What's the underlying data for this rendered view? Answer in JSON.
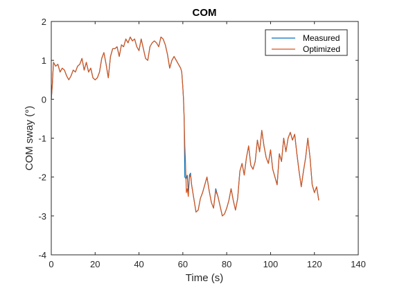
{
  "chart_data": {
    "type": "line",
    "title": "COM",
    "xlabel": "Time (s)",
    "ylabel": "COM sway (°)",
    "xlim": [
      0,
      140
    ],
    "ylim": [
      -4,
      2
    ],
    "xticks": [
      0,
      20,
      40,
      60,
      80,
      100,
      120,
      140
    ],
    "yticks": [
      -4,
      -3,
      -2,
      -1,
      0,
      1,
      2
    ],
    "xtick_labels": [
      "0",
      "20",
      "40",
      "60",
      "80",
      "100",
      "120",
      "140"
    ],
    "ytick_labels": [
      "-4",
      "-3",
      "-2",
      "-1",
      "0",
      "1",
      "2"
    ],
    "grid": false,
    "legend_position": "top-right",
    "series": [
      {
        "name": "Measured",
        "color": "#0072BD",
        "points": [
          [
            0,
            0.0
          ],
          [
            0.5,
            0.4
          ],
          [
            1,
            0.95
          ],
          [
            2,
            0.85
          ],
          [
            3,
            0.9
          ],
          [
            4,
            0.7
          ],
          [
            5,
            0.8
          ],
          [
            6,
            0.75
          ],
          [
            7,
            0.6
          ],
          [
            8,
            0.5
          ],
          [
            9,
            0.6
          ],
          [
            10,
            0.75
          ],
          [
            11,
            0.7
          ],
          [
            12,
            0.85
          ],
          [
            13,
            0.9
          ],
          [
            14,
            1.05
          ],
          [
            15,
            0.75
          ],
          [
            16,
            0.95
          ],
          [
            17,
            0.7
          ],
          [
            18,
            0.8
          ],
          [
            19,
            0.55
          ],
          [
            20,
            0.5
          ],
          [
            21,
            0.55
          ],
          [
            22,
            0.7
          ],
          [
            23,
            1.05
          ],
          [
            24,
            1.2
          ],
          [
            25,
            0.9
          ],
          [
            26,
            0.55
          ],
          [
            27,
            1.1
          ],
          [
            28,
            1.3
          ],
          [
            29,
            1.3
          ],
          [
            30,
            1.35
          ],
          [
            31,
            1.1
          ],
          [
            32,
            1.4
          ],
          [
            33,
            1.35
          ],
          [
            34,
            1.55
          ],
          [
            35,
            1.45
          ],
          [
            36,
            1.6
          ],
          [
            37,
            1.5
          ],
          [
            38,
            1.55
          ],
          [
            39,
            1.35
          ],
          [
            40,
            1.25
          ],
          [
            41,
            1.55
          ],
          [
            42,
            1.3
          ],
          [
            43,
            1.05
          ],
          [
            44,
            1.0
          ],
          [
            45,
            1.35
          ],
          [
            46,
            1.45
          ],
          [
            47,
            1.5
          ],
          [
            48,
            1.45
          ],
          [
            49,
            1.35
          ],
          [
            50,
            1.6
          ],
          [
            51,
            1.55
          ],
          [
            52,
            1.4
          ],
          [
            53,
            1.15
          ],
          [
            54,
            0.8
          ],
          [
            55,
            1.0
          ],
          [
            56,
            1.1
          ],
          [
            57,
            1.0
          ],
          [
            58,
            0.9
          ],
          [
            59,
            0.8
          ],
          [
            59.5,
            0.7
          ],
          [
            60,
            0.3
          ],
          [
            60.3,
            0.0
          ],
          [
            60.6,
            -0.5
          ],
          [
            60.9,
            -2.0
          ],
          [
            61.5,
            -2.05
          ],
          [
            62,
            -1.95
          ],
          [
            62.5,
            -2.4
          ],
          [
            63,
            -1.95
          ],
          [
            63.5,
            -1.9
          ],
          [
            64,
            -2.2
          ],
          [
            65,
            -2.55
          ],
          [
            66,
            -2.9
          ],
          [
            67,
            -2.85
          ],
          [
            68,
            -2.55
          ],
          [
            69,
            -2.4
          ],
          [
            70,
            -2.2
          ],
          [
            71,
            -2.0
          ],
          [
            72,
            -2.35
          ],
          [
            73,
            -2.65
          ],
          [
            74,
            -2.8
          ],
          [
            75,
            -2.3
          ],
          [
            76,
            -2.5
          ],
          [
            77,
            -2.75
          ],
          [
            78,
            -3.0
          ],
          [
            79,
            -2.95
          ],
          [
            80,
            -2.8
          ],
          [
            81,
            -2.6
          ],
          [
            82,
            -2.3
          ],
          [
            83,
            -2.6
          ],
          [
            84,
            -2.85
          ],
          [
            85,
            -2.55
          ],
          [
            86,
            -1.85
          ],
          [
            87,
            -1.65
          ],
          [
            88,
            -1.95
          ],
          [
            89,
            -1.5
          ],
          [
            90,
            -1.2
          ],
          [
            91,
            -1.7
          ],
          [
            92,
            -1.8
          ],
          [
            93,
            -1.6
          ],
          [
            94,
            -1.05
          ],
          [
            95,
            -1.35
          ],
          [
            96,
            -0.8
          ],
          [
            97,
            -1.2
          ],
          [
            98,
            -1.5
          ],
          [
            99,
            -1.65
          ],
          [
            100,
            -1.3
          ],
          [
            101,
            -1.8
          ],
          [
            102,
            -2.0
          ],
          [
            103,
            -2.2
          ],
          [
            104,
            -1.4
          ],
          [
            105,
            -1.6
          ],
          [
            106,
            -1.0
          ],
          [
            107,
            -1.35
          ],
          [
            108,
            -1.0
          ],
          [
            109,
            -0.85
          ],
          [
            110,
            -1.05
          ],
          [
            111,
            -0.9
          ],
          [
            112,
            -1.4
          ],
          [
            113,
            -1.85
          ],
          [
            114,
            -2.25
          ],
          [
            115,
            -1.85
          ],
          [
            116,
            -1.5
          ],
          [
            117,
            -1.0
          ],
          [
            118,
            -1.5
          ],
          [
            119,
            -2.2
          ],
          [
            120,
            -2.4
          ],
          [
            121,
            -2.25
          ],
          [
            122,
            -2.6
          ]
        ]
      },
      {
        "name": "Optimized",
        "color": "#D95319",
        "points": [
          [
            0,
            0.0
          ],
          [
            0.5,
            0.4
          ],
          [
            1,
            0.95
          ],
          [
            2,
            0.85
          ],
          [
            3,
            0.9
          ],
          [
            4,
            0.7
          ],
          [
            5,
            0.8
          ],
          [
            6,
            0.75
          ],
          [
            7,
            0.6
          ],
          [
            8,
            0.5
          ],
          [
            9,
            0.6
          ],
          [
            10,
            0.75
          ],
          [
            11,
            0.7
          ],
          [
            12,
            0.85
          ],
          [
            13,
            0.9
          ],
          [
            14,
            1.05
          ],
          [
            15,
            0.75
          ],
          [
            16,
            0.95
          ],
          [
            17,
            0.7
          ],
          [
            18,
            0.8
          ],
          [
            19,
            0.55
          ],
          [
            20,
            0.5
          ],
          [
            21,
            0.55
          ],
          [
            22,
            0.7
          ],
          [
            23,
            1.05
          ],
          [
            24,
            1.2
          ],
          [
            25,
            0.9
          ],
          [
            26,
            0.55
          ],
          [
            27,
            1.1
          ],
          [
            28,
            1.3
          ],
          [
            29,
            1.3
          ],
          [
            30,
            1.35
          ],
          [
            31,
            1.1
          ],
          [
            32,
            1.4
          ],
          [
            33,
            1.35
          ],
          [
            34,
            1.55
          ],
          [
            35,
            1.45
          ],
          [
            36,
            1.6
          ],
          [
            37,
            1.5
          ],
          [
            38,
            1.55
          ],
          [
            39,
            1.35
          ],
          [
            40,
            1.25
          ],
          [
            41,
            1.55
          ],
          [
            42,
            1.3
          ],
          [
            43,
            1.05
          ],
          [
            44,
            1.0
          ],
          [
            45,
            1.35
          ],
          [
            46,
            1.45
          ],
          [
            47,
            1.5
          ],
          [
            48,
            1.45
          ],
          [
            49,
            1.35
          ],
          [
            50,
            1.6
          ],
          [
            51,
            1.55
          ],
          [
            52,
            1.4
          ],
          [
            53,
            1.15
          ],
          [
            54,
            0.8
          ],
          [
            55,
            1.0
          ],
          [
            56,
            1.1
          ],
          [
            57,
            1.0
          ],
          [
            58,
            0.9
          ],
          [
            59,
            0.8
          ],
          [
            59.5,
            0.7
          ],
          [
            60,
            0.3
          ],
          [
            60.3,
            0.0
          ],
          [
            60.6,
            -0.5
          ],
          [
            60.9,
            -1.2
          ],
          [
            61.2,
            -1.6
          ],
          [
            61.6,
            -2.4
          ],
          [
            62,
            -2.3
          ],
          [
            62.5,
            -2.5
          ],
          [
            63,
            -2.0
          ],
          [
            63.5,
            -1.95
          ],
          [
            64,
            -2.2
          ],
          [
            65,
            -2.55
          ],
          [
            66,
            -2.9
          ],
          [
            67,
            -2.85
          ],
          [
            68,
            -2.55
          ],
          [
            69,
            -2.4
          ],
          [
            70,
            -2.2
          ],
          [
            71,
            -2.0
          ],
          [
            72,
            -2.35
          ],
          [
            73,
            -2.65
          ],
          [
            74,
            -2.8
          ],
          [
            75,
            -2.35
          ],
          [
            76,
            -2.5
          ],
          [
            77,
            -2.75
          ],
          [
            78,
            -3.0
          ],
          [
            79,
            -2.95
          ],
          [
            80,
            -2.8
          ],
          [
            81,
            -2.6
          ],
          [
            82,
            -2.3
          ],
          [
            83,
            -2.6
          ],
          [
            84,
            -2.85
          ],
          [
            85,
            -2.55
          ],
          [
            86,
            -1.85
          ],
          [
            87,
            -1.65
          ],
          [
            88,
            -1.95
          ],
          [
            89,
            -1.5
          ],
          [
            90,
            -1.2
          ],
          [
            91,
            -1.7
          ],
          [
            92,
            -1.8
          ],
          [
            93,
            -1.6
          ],
          [
            94,
            -1.05
          ],
          [
            95,
            -1.35
          ],
          [
            96,
            -0.8
          ],
          [
            97,
            -1.2
          ],
          [
            98,
            -1.5
          ],
          [
            99,
            -1.65
          ],
          [
            100,
            -1.3
          ],
          [
            101,
            -1.8
          ],
          [
            102,
            -2.0
          ],
          [
            103,
            -2.2
          ],
          [
            104,
            -1.4
          ],
          [
            105,
            -1.6
          ],
          [
            106,
            -1.0
          ],
          [
            107,
            -1.35
          ],
          [
            108,
            -1.0
          ],
          [
            109,
            -0.85
          ],
          [
            110,
            -1.05
          ],
          [
            111,
            -0.9
          ],
          [
            112,
            -1.4
          ],
          [
            113,
            -1.85
          ],
          [
            114,
            -2.25
          ],
          [
            115,
            -1.85
          ],
          [
            116,
            -1.5
          ],
          [
            117,
            -1.0
          ],
          [
            118,
            -1.5
          ],
          [
            119,
            -2.2
          ],
          [
            120,
            -2.4
          ],
          [
            121,
            -2.25
          ],
          [
            122,
            -2.6
          ]
        ]
      }
    ]
  }
}
